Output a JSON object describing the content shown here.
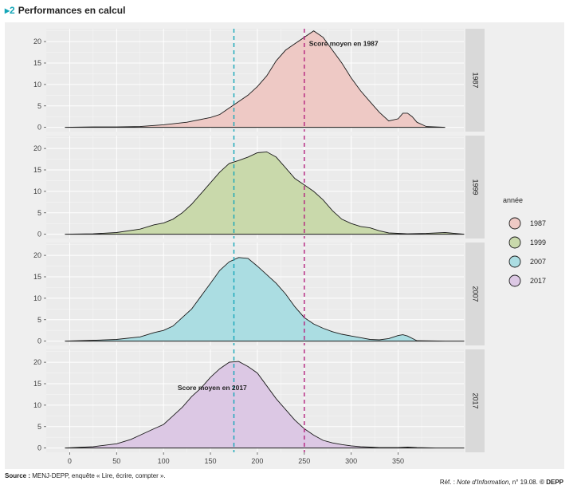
{
  "header": {
    "number": "2",
    "title": "Performances en calcul"
  },
  "footer": {
    "source_label": "Source :",
    "source_text": "MENJ-DEPP, enquête « Lire, écrire, compter ».",
    "ref_prefix": "Réf. :",
    "ref_publication": "Note d'Information",
    "ref_suffix": ", n° 19.08.",
    "ref_credit": "© DEPP"
  },
  "chart_data": {
    "type": "area",
    "title": "Performances en calcul",
    "xlabel": "",
    "ylabel": "",
    "xlim": [
      -25,
      420
    ],
    "ylim": [
      -1,
      23
    ],
    "x_ticks": [
      0,
      50,
      100,
      150,
      200,
      250,
      300,
      350
    ],
    "y_ticks": [
      0,
      5,
      10,
      15,
      20
    ],
    "legend": {
      "title": "année",
      "position": "right"
    },
    "reference_lines": [
      {
        "name": "mean-2017",
        "x": 175,
        "color": "#14a6b8",
        "style": "dashed"
      },
      {
        "name": "mean-1987",
        "x": 250,
        "color": "#b5217f",
        "style": "dashed"
      }
    ],
    "annotations": [
      {
        "panel": "1987",
        "text": "Score moyen en 1987",
        "x": 255,
        "y": 19
      },
      {
        "panel": "2017",
        "text": "Score moyen en 2017",
        "x": 115,
        "y": 13.5
      }
    ],
    "series": [
      {
        "name": "1987",
        "color": "#eec9c5",
        "x": [
          -5,
          25,
          50,
          75,
          100,
          125,
          150,
          160,
          170,
          180,
          190,
          200,
          210,
          220,
          230,
          240,
          250,
          260,
          270,
          280,
          290,
          300,
          310,
          320,
          330,
          340,
          350,
          355,
          360,
          365,
          370,
          380,
          400
        ],
        "y": [
          0,
          0.1,
          0.1,
          0.2,
          0.6,
          1.2,
          2.3,
          3.0,
          4.5,
          6.0,
          7.5,
          9.5,
          12.0,
          15.5,
          18.0,
          19.5,
          21.0,
          22.5,
          21.0,
          18.0,
          15.0,
          11.5,
          8.5,
          6.0,
          3.5,
          1.5,
          2.0,
          3.3,
          3.3,
          2.5,
          1.2,
          0.2,
          0
        ]
      },
      {
        "name": "1999",
        "color": "#c9d9ab",
        "x": [
          -5,
          25,
          50,
          75,
          90,
          100,
          110,
          120,
          130,
          140,
          150,
          160,
          170,
          180,
          190,
          200,
          210,
          220,
          230,
          240,
          250,
          260,
          270,
          280,
          290,
          300,
          310,
          320,
          330,
          340,
          360,
          380,
          400,
          405,
          410,
          420
        ],
        "y": [
          0,
          0.1,
          0.4,
          1.2,
          2.2,
          2.6,
          3.5,
          5.0,
          7.0,
          9.5,
          12.0,
          14.5,
          16.5,
          17.2,
          18.0,
          19.0,
          19.2,
          18.0,
          15.5,
          13.0,
          11.5,
          10.0,
          8.0,
          5.5,
          3.5,
          2.5,
          1.8,
          1.5,
          0.8,
          0.3,
          0.1,
          0.2,
          0.4,
          0.3,
          0.2,
          0
        ]
      },
      {
        "name": "2007",
        "color": "#abdde2",
        "x": [
          -5,
          25,
          50,
          75,
          90,
          100,
          110,
          120,
          130,
          140,
          150,
          160,
          170,
          180,
          190,
          200,
          210,
          220,
          230,
          240,
          250,
          260,
          270,
          280,
          290,
          300,
          310,
          320,
          330,
          340,
          350,
          355,
          360,
          370,
          400,
          420
        ],
        "y": [
          0,
          0.2,
          0.4,
          1.0,
          2.0,
          2.5,
          3.5,
          5.5,
          7.5,
          10.5,
          13.5,
          16.5,
          18.5,
          19.5,
          19.3,
          17.5,
          15.5,
          13.5,
          11.0,
          8.0,
          5.5,
          4.0,
          3.0,
          2.2,
          1.6,
          1.2,
          0.8,
          0.4,
          0.3,
          0.6,
          1.3,
          1.5,
          1.2,
          0.1,
          0,
          0
        ]
      },
      {
        "name": "2017",
        "color": "#dcc8e4",
        "x": [
          -5,
          25,
          50,
          65,
          75,
          90,
          100,
          110,
          120,
          130,
          140,
          150,
          160,
          170,
          180,
          190,
          200,
          210,
          220,
          230,
          240,
          250,
          260,
          270,
          280,
          290,
          300,
          310,
          320,
          330,
          340,
          350,
          360,
          370,
          390,
          420
        ],
        "y": [
          0,
          0.3,
          1.0,
          2.0,
          3.0,
          4.5,
          5.5,
          7.5,
          9.5,
          12.0,
          14.0,
          16.5,
          18.5,
          20.0,
          20.2,
          19.0,
          17.5,
          14.5,
          11.5,
          9.0,
          6.5,
          4.5,
          3.0,
          1.8,
          1.2,
          0.8,
          0.5,
          0.3,
          0.2,
          0.1,
          0.1,
          0.1,
          0.2,
          0.1,
          0,
          0
        ]
      }
    ]
  }
}
